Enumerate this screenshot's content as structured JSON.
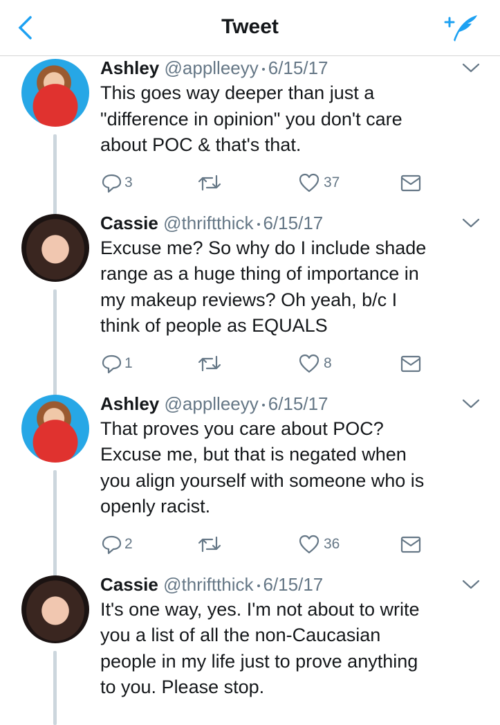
{
  "header": {
    "title": "Tweet"
  },
  "tweets": [
    {
      "name": "Ashley",
      "handle": "@applleeyy",
      "date": "6/15/17",
      "lines": [
        "This goes way deeper than just a",
        "\"difference in opinion\" you don't care",
        "about POC & that's that."
      ],
      "replies": 3,
      "likes": 37
    },
    {
      "name": "Cassie",
      "handle": "@thriftthick",
      "date": "6/15/17",
      "lines": [
        "Excuse me? So why do I include shade",
        "range as a huge thing of importance in",
        "my makeup reviews? Oh yeah, b/c I",
        "think of people as EQUALS"
      ],
      "replies": 1,
      "likes": 8
    },
    {
      "name": "Ashley",
      "handle": "@applleeyy",
      "date": "6/15/17",
      "lines": [
        "That proves you care about POC?",
        "Excuse me, but that is negated when",
        "you align yourself with someone who is",
        "openly racist."
      ],
      "replies": 2,
      "likes": 36
    },
    {
      "name": "Cassie",
      "handle": "@thriftthick",
      "date": "6/15/17",
      "lines": [
        "It's one way, yes. I'm not about to write",
        "you a list of all the non-Caucasian",
        "people in my life just to prove anything",
        "to you. Please stop."
      ]
    }
  ]
}
